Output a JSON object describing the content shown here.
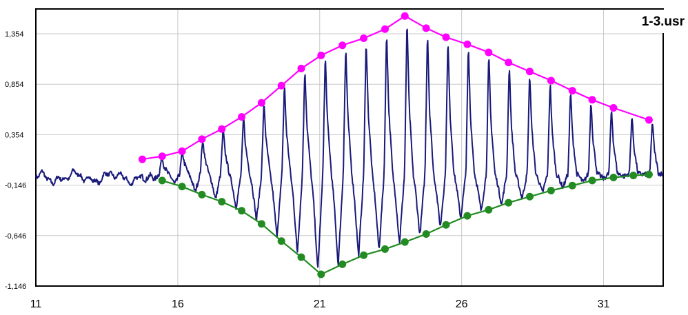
{
  "chart_data": {
    "type": "line",
    "title": "1-3.usr",
    "xlabel": "",
    "ylabel": "",
    "xlim": [
      11,
      33.1
    ],
    "ylim": [
      -1.146,
      1.6
    ],
    "grid": true,
    "x_ticks": [
      11,
      16,
      21,
      26,
      31
    ],
    "x_tick_labels": [
      "11",
      "16",
      "21",
      "26",
      "31"
    ],
    "y_ticks": [
      -1.146,
      -0.646,
      -0.146,
      0.354,
      0.854,
      1.354
    ],
    "y_tick_labels": [
      "-1,146",
      "-0,646",
      "-0,146",
      "0,354",
      "0,854",
      "1,354"
    ],
    "colors": {
      "signal": "#1a1a7a",
      "upper": "#ff00ff",
      "lower": "#228b22",
      "grid": "#c8c8c8"
    },
    "signal": {
      "period_start": 15.35,
      "period": 0.72,
      "baseline": -0.03,
      "noise_start": 11.0,
      "noise_end": 15.0,
      "noise_level": 0.0
    },
    "series": [
      {
        "type": "line-markers",
        "x": [
          14.75,
          15.45,
          16.15,
          16.85,
          17.55,
          18.25,
          18.95,
          19.65,
          20.35,
          21.05,
          21.8,
          22.55,
          23.3,
          24.0,
          24.75,
          25.45,
          26.2,
          26.95,
          27.65,
          28.4,
          29.15,
          29.9,
          30.6,
          31.35,
          32.6
        ],
        "values": [
          0.11,
          0.14,
          0.19,
          0.31,
          0.41,
          0.53,
          0.67,
          0.84,
          1.01,
          1.14,
          1.24,
          1.31,
          1.4,
          1.53,
          1.41,
          1.32,
          1.25,
          1.17,
          1.07,
          0.98,
          0.89,
          0.79,
          0.7,
          0.62,
          0.5
        ]
      },
      {
        "type": "line-markers",
        "x": [
          15.45,
          16.15,
          16.85,
          17.55,
          18.25,
          18.95,
          19.65,
          20.35,
          21.05,
          21.8,
          22.55,
          23.3,
          24.0,
          24.75,
          25.45,
          26.2,
          26.95,
          27.65,
          28.4,
          29.15,
          29.9,
          30.6,
          31.35,
          32.05,
          32.6
        ],
        "values": [
          -0.1,
          -0.16,
          -0.24,
          -0.31,
          -0.4,
          -0.53,
          -0.7,
          -0.86,
          -1.03,
          -0.93,
          -0.84,
          -0.78,
          -0.71,
          -0.63,
          -0.54,
          -0.45,
          -0.39,
          -0.32,
          -0.26,
          -0.2,
          -0.15,
          -0.1,
          -0.07,
          -0.05,
          -0.04
        ]
      }
    ]
  }
}
